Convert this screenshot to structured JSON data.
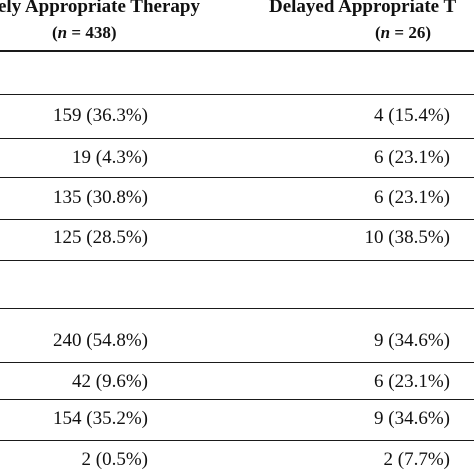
{
  "header": {
    "col1_title": "ely Appropriate Therapy",
    "col1_n": "(n = 438)",
    "col2_title": "Delayed Appropriate T",
    "col2_n": "(n = 26)"
  },
  "groups": [
    {
      "rows": [
        {
          "col1": "159 (36.3%)",
          "col2": "4 (15.4%)"
        },
        {
          "col1": "19 (4.3%)",
          "col2": "6 (23.1%)"
        },
        {
          "col1": "135 (30.8%)",
          "col2": "6 (23.1%)"
        },
        {
          "col1": "125 (28.5%)",
          "col2": "10 (38.5%)"
        }
      ]
    },
    {
      "rows": [
        {
          "col1": "240 (54.8%)",
          "col2": "9 (34.6%)"
        },
        {
          "col1": "42 (9.6%)",
          "col2": "6 (23.1%)"
        },
        {
          "col1": "154 (35.2%)",
          "col2": "9 (34.6%)"
        },
        {
          "col1": "2 (0.5%)",
          "col2": "2 (7.7%)"
        }
      ]
    }
  ]
}
